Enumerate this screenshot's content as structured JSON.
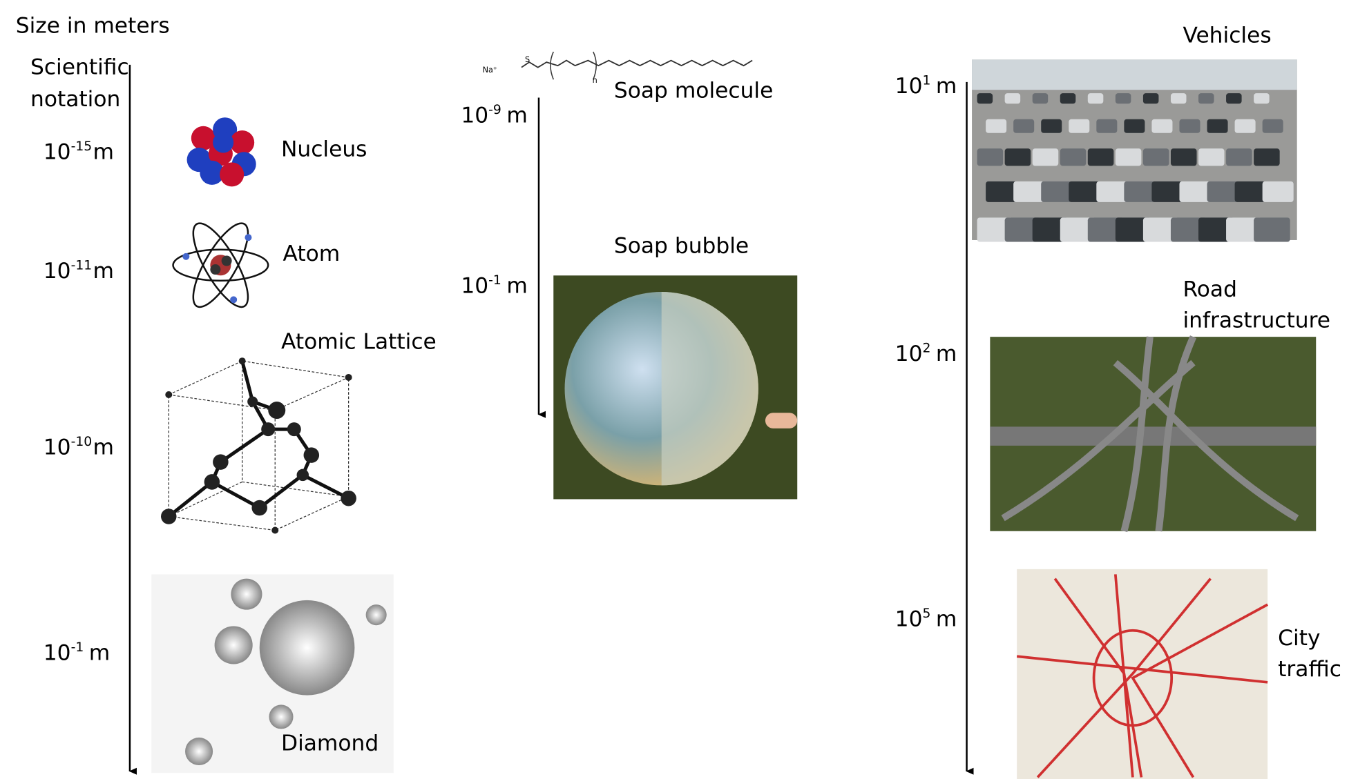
{
  "header": {
    "title": "Size in meters",
    "subtitle": [
      "Scientific",
      "notation"
    ]
  },
  "columns": [
    {
      "scales": [
        {
          "base": "10",
          "exp": "-15",
          "unit": "m"
        },
        {
          "base": "10",
          "exp": "-11",
          "unit": "m"
        },
        {
          "base": "10",
          "exp": "-10",
          "unit": "m"
        },
        {
          "base": "10",
          "exp": "-1",
          "unit": "m"
        }
      ],
      "items": [
        {
          "lines": [
            "Nucleus"
          ]
        },
        {
          "lines": [
            "Atom"
          ]
        },
        {
          "lines": [
            "Atomic Lattice"
          ]
        },
        {
          "lines": [
            "Diamond"
          ]
        }
      ]
    },
    {
      "scales": [
        {
          "base": "10",
          "exp": "-9",
          "unit": "m"
        },
        {
          "base": "10",
          "exp": "-1",
          "unit": "m"
        }
      ],
      "items": [
        {
          "lines": [
            "Soap molecule"
          ]
        },
        {
          "lines": [
            "Soap bubble"
          ]
        }
      ]
    },
    {
      "scales": [
        {
          "base": "10",
          "exp": "1",
          "unit": "m"
        },
        {
          "base": "10",
          "exp": "2",
          "unit": "m"
        },
        {
          "base": "10",
          "exp": "5",
          "unit": "m"
        }
      ],
      "items": [
        {
          "lines": [
            "Vehicles"
          ]
        },
        {
          "lines": [
            "Road",
            "infrastructure"
          ]
        },
        {
          "lines": [
            "City",
            "traffic"
          ]
        }
      ]
    }
  ],
  "molecule": {
    "cation": "Na⁺",
    "sulfur": "S",
    "repeat": "n"
  }
}
